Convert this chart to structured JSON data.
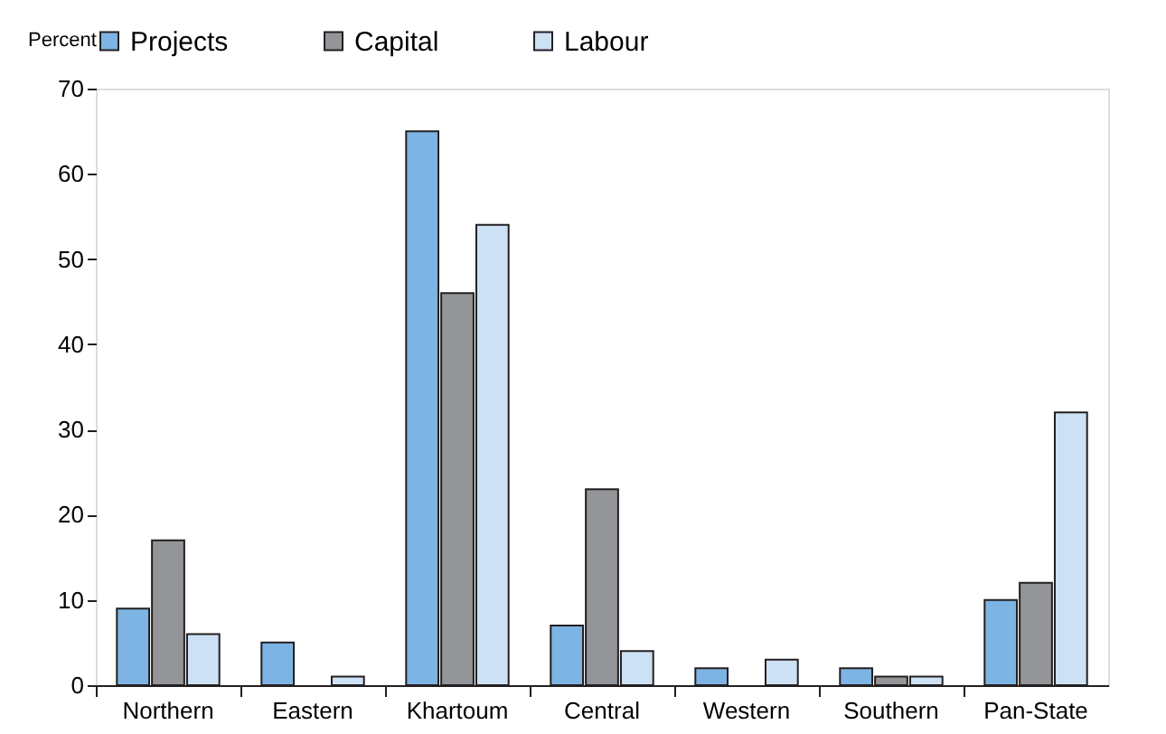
{
  "chart_data": {
    "type": "bar",
    "ylabel": "Percent",
    "categories": [
      "Northern",
      "Eastern",
      "Khartoum",
      "Central",
      "Western",
      "Southern",
      "Pan-State"
    ],
    "series": [
      {
        "name": "Projects",
        "color": "#7db4e3",
        "values": [
          9,
          5,
          65,
          7,
          2,
          2,
          10
        ]
      },
      {
        "name": "Capital",
        "color": "#939598",
        "values": [
          17,
          null,
          46,
          23,
          null,
          1,
          12
        ]
      },
      {
        "name": "Labour",
        "color": "#cde1f4",
        "values": [
          6,
          1,
          54,
          4,
          3,
          1,
          32
        ]
      }
    ],
    "ylim": [
      0,
      70
    ],
    "yticks": [
      0,
      10,
      20,
      30,
      40,
      50,
      60,
      70
    ],
    "grid": false,
    "legend": "top"
  }
}
